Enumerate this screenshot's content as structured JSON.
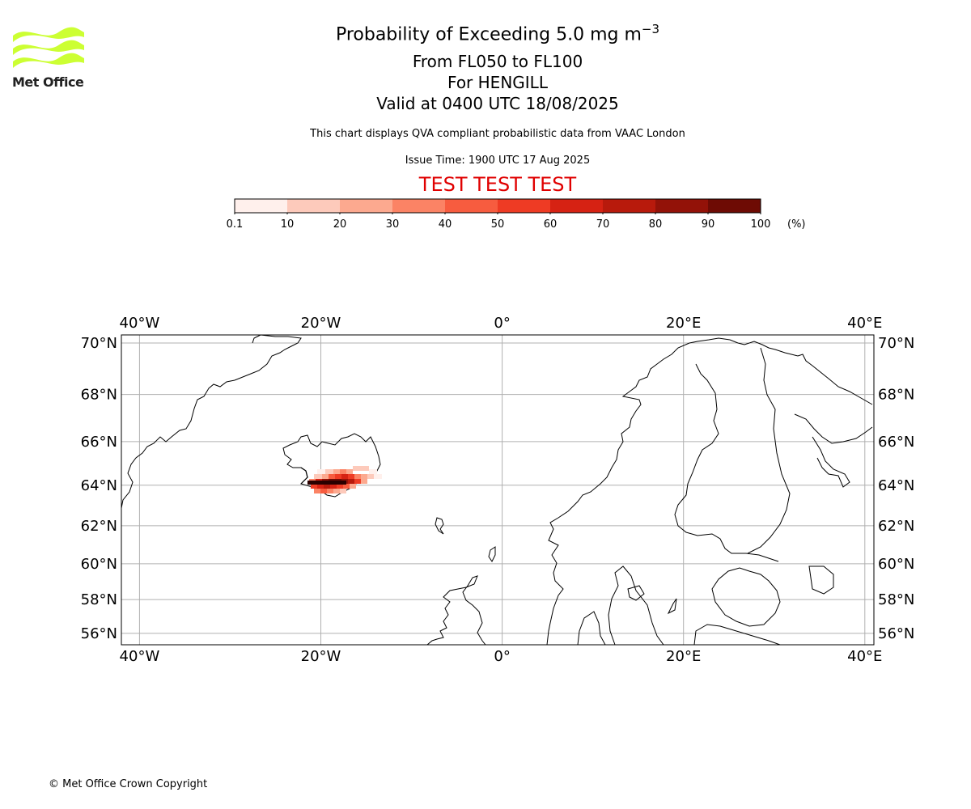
{
  "logo": {
    "text": "Met Office",
    "brand_color": "#ccff33"
  },
  "title": {
    "line1_prefix": "Probability of Exceeding 5.0 mg m",
    "line1_exp": "−3",
    "line2": "From FL050 to FL100",
    "line3": "For HENGILL",
    "line4": "Valid at 0400 UTC 18/08/2025"
  },
  "subtitle": "This chart displays QVA compliant probabilistic data from VAAC London",
  "issue_time": "Issue Time: 1900 UTC 17 Aug 2025",
  "test_banner": "TEST TEST TEST",
  "test_banner_color": "#e00000",
  "colorbar": {
    "ticks": [
      "0.1",
      "10",
      "20",
      "30",
      "40",
      "50",
      "60",
      "70",
      "80",
      "90",
      "100"
    ],
    "unit": "(%)",
    "colors": [
      "#fff0ec",
      "#fdcabb",
      "#fca98f",
      "#fb8365",
      "#f75c3f",
      "#ee3b24",
      "#d62213",
      "#b81a0c",
      "#931208",
      "#6e0b04"
    ]
  },
  "map": {
    "lon_labels": [
      "40°W",
      "20°W",
      "0°",
      "20°E",
      "40°E"
    ],
    "lat_labels": [
      "70°N",
      "68°N",
      "66°N",
      "64°N",
      "62°N",
      "60°N",
      "58°N",
      "56°N"
    ],
    "lon_values": [
      -40,
      -20,
      0,
      20,
      40
    ],
    "lat_values": [
      70,
      68,
      66,
      64,
      62,
      60,
      58,
      56
    ],
    "extent": {
      "lon": [
        -42,
        41
      ],
      "lat": [
        55.3,
        70.3
      ]
    },
    "plume_location": "southern Iceland (Hengill)"
  },
  "copyright": "© Met Office Crown Copyright"
}
